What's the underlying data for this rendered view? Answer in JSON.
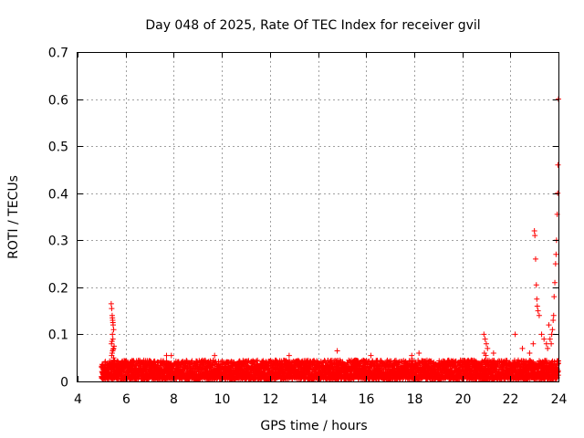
{
  "chart_data": {
    "type": "scatter",
    "title": "Day 048 of 2025, Rate Of TEC Index for receiver gvil",
    "xlabel": "GPS time / hours",
    "ylabel": "ROTI / TECUs",
    "xlim": [
      4,
      24
    ],
    "ylim": [
      0,
      0.7
    ],
    "xticks": [
      4,
      6,
      8,
      10,
      12,
      14,
      16,
      18,
      20,
      22,
      24
    ],
    "yticks": [
      0,
      0.1,
      0.2,
      0.3,
      0.4,
      0.5,
      0.6,
      0.7
    ],
    "xtick_labels": [
      "4",
      "6",
      "8",
      "10",
      "12",
      "14",
      "16",
      "18",
      "20",
      "22",
      "24"
    ],
    "ytick_labels": [
      "0",
      "0.1",
      "0.2",
      "0.3",
      "0.4",
      "0.5",
      "0.6",
      "0.7"
    ],
    "grid": true,
    "marker": "+",
    "color": "#ff0000",
    "series": [
      {
        "name": "ROTI",
        "baseline_band": {
          "x_start": 5.0,
          "x_end": 24.0,
          "y_min": 0.005,
          "y_typical_max": 0.045
        },
        "x": [
          5.4,
          5.42,
          5.44,
          5.46,
          5.48,
          5.5,
          5.45,
          5.47,
          5.43,
          5.41,
          5.52,
          5.5,
          5.48,
          5.46,
          5.44,
          5.42,
          5.5,
          5.52,
          5.47,
          5.45,
          7.7,
          7.9,
          9.7,
          12.8,
          14.8,
          16.2,
          17.9,
          18.2,
          20.9,
          20.95,
          21.0,
          21.05,
          20.92,
          20.98,
          21.3,
          22.2,
          22.5,
          22.8,
          22.95,
          23.0,
          23.02,
          23.05,
          23.08,
          23.1,
          23.12,
          23.15,
          23.2,
          23.3,
          23.4,
          23.5,
          23.55,
          23.6,
          23.65,
          23.7,
          23.72,
          23.75,
          23.78,
          23.8,
          23.82,
          23.85,
          23.88,
          23.9,
          23.92,
          23.95,
          23.97,
          23.98,
          24.0
        ],
        "y": [
          0.165,
          0.155,
          0.14,
          0.13,
          0.12,
          0.11,
          0.1,
          0.09,
          0.085,
          0.08,
          0.075,
          0.07,
          0.068,
          0.065,
          0.06,
          0.055,
          0.05,
          0.045,
          0.125,
          0.135,
          0.055,
          0.055,
          0.055,
          0.055,
          0.065,
          0.055,
          0.055,
          0.06,
          0.1,
          0.09,
          0.08,
          0.07,
          0.06,
          0.055,
          0.06,
          0.1,
          0.07,
          0.06,
          0.08,
          0.32,
          0.31,
          0.26,
          0.205,
          0.175,
          0.16,
          0.15,
          0.14,
          0.1,
          0.09,
          0.08,
          0.07,
          0.12,
          0.09,
          0.08,
          0.1,
          0.11,
          0.13,
          0.14,
          0.18,
          0.21,
          0.25,
          0.27,
          0.3,
          0.355,
          0.4,
          0.46,
          0.6
        ]
      }
    ]
  }
}
